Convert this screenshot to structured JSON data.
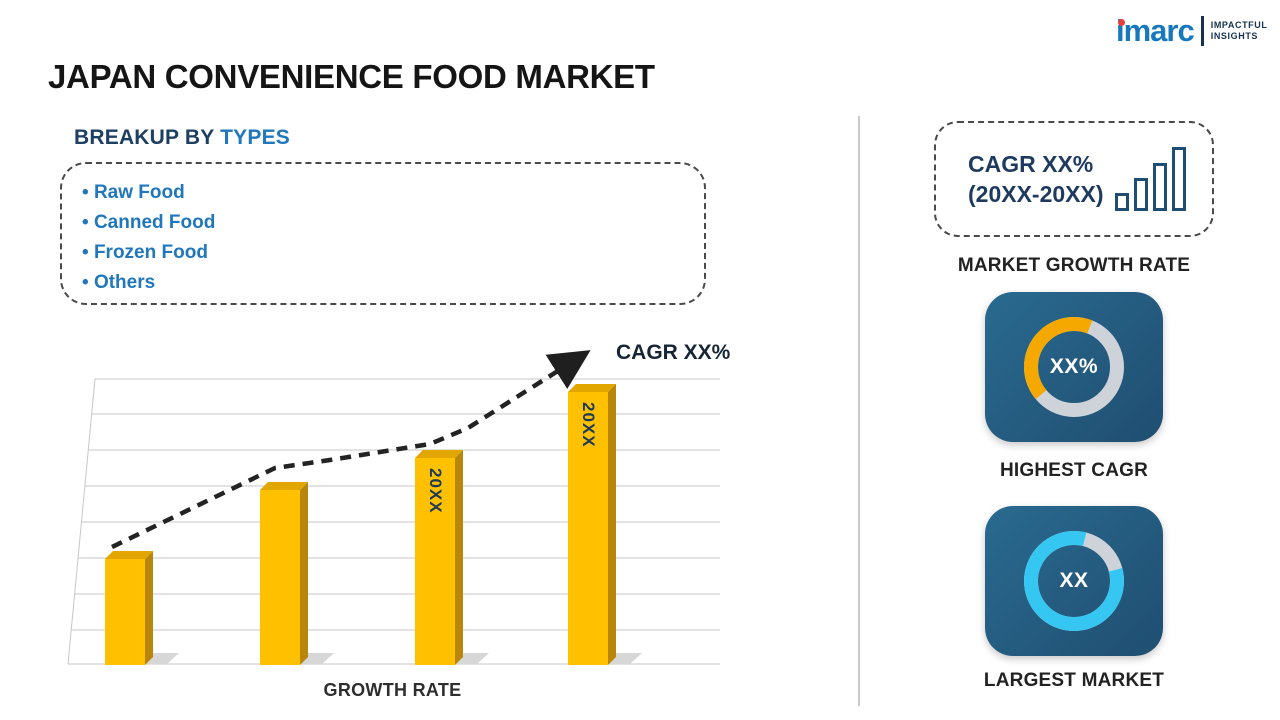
{
  "logo": {
    "brand": "imarc",
    "tagline_line1": "IMPACTFUL",
    "tagline_line2": "INSIGHTS"
  },
  "title": "JAPAN CONVENIENCE FOOD MARKET",
  "breakup": {
    "heading_prefix": "BREAKUP BY ",
    "heading_accent": "TYPES",
    "items": [
      "Raw Food",
      "Canned Food",
      "Frozen Food",
      "Others"
    ]
  },
  "chart_data": {
    "type": "bar",
    "categories": [
      "",
      "",
      "20XX",
      "20XX"
    ],
    "values": [
      37,
      61,
      72,
      95
    ],
    "values_unit": "percent of plot height (y-axis unlabeled)",
    "title": "",
    "xlabel": "GROWTH RATE",
    "ylabel": "",
    "grid": true,
    "trend_annotation": "CAGR XX%",
    "bar_color": "#FFC000",
    "trend_style": "dashed-arrow"
  },
  "right_panel": {
    "cagr_card": {
      "line1": "CAGR XX%",
      "line2": "(20XX-20XX)"
    },
    "market_growth_rate_label": "MARKET GROWTH RATE",
    "highest_cagr": {
      "value": "XX%",
      "label": "HIGHEST CAGR",
      "ring_color": "#F5A800",
      "arc_percent_estimate": 42
    },
    "largest_market": {
      "value": "XX",
      "label": "LARGEST MARKET",
      "ring_color": "#35C7F2",
      "arc_percent_estimate": 83
    }
  },
  "colors": {
    "accent_blue": "#2077BC",
    "navy": "#1E4E74",
    "tile_navy": "#235A7C",
    "bar_yellow": "#FFC000",
    "ring_gray": "#CDD3D8"
  }
}
